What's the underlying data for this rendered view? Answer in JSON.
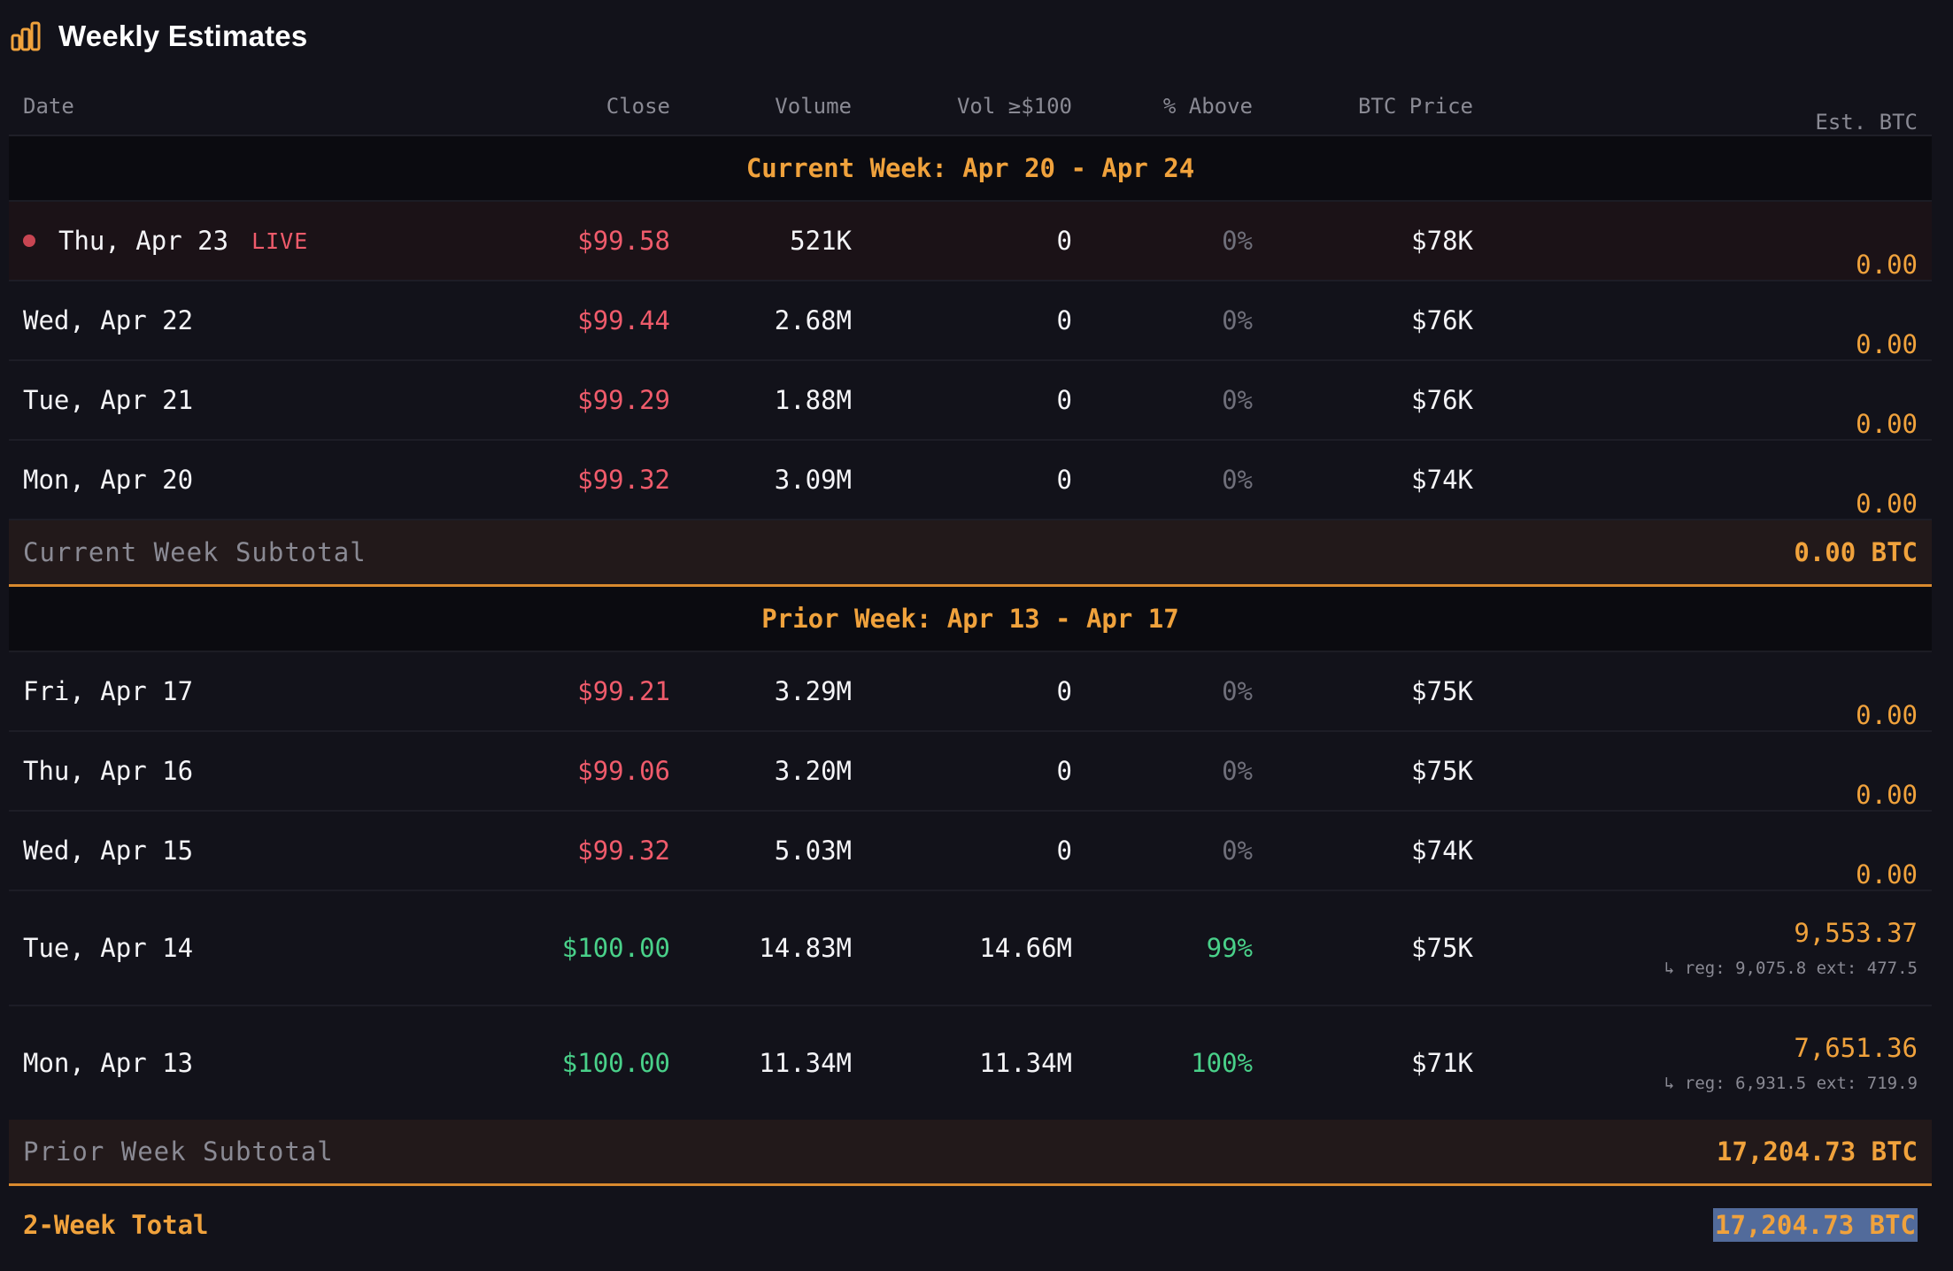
{
  "title": "Weekly Estimates",
  "title_icon": "bar-chart-icon",
  "columns": {
    "date": "Date",
    "close": "Close",
    "volume": "Volume",
    "vol_above": "Vol ≥$100",
    "pct_above": "% Above",
    "btc_price": "BTC Price",
    "est_btc": "Est. BTC"
  },
  "current_week": {
    "header": "Current Week: Apr 20 - Apr 24",
    "rows": [
      {
        "date": "Thu, Apr 23",
        "live": "LIVE",
        "close": "$99.58",
        "volume": "521K",
        "vol_above": "0",
        "pct_above": "0%",
        "btc_price": "$78K",
        "est_btc": "0.00"
      },
      {
        "date": "Wed, Apr 22",
        "close": "$99.44",
        "volume": "2.68M",
        "vol_above": "0",
        "pct_above": "0%",
        "btc_price": "$76K",
        "est_btc": "0.00"
      },
      {
        "date": "Tue, Apr 21",
        "close": "$99.29",
        "volume": "1.88M",
        "vol_above": "0",
        "pct_above": "0%",
        "btc_price": "$76K",
        "est_btc": "0.00"
      },
      {
        "date": "Mon, Apr 20",
        "close": "$99.32",
        "volume": "3.09M",
        "vol_above": "0",
        "pct_above": "0%",
        "btc_price": "$74K",
        "est_btc": "0.00"
      }
    ],
    "subtotal_label": "Current Week Subtotal",
    "subtotal_value": "0.00 BTC"
  },
  "prior_week": {
    "header": "Prior Week: Apr 13 - Apr 17",
    "rows": [
      {
        "date": "Fri, Apr 17",
        "close": "$99.21",
        "volume": "3.29M",
        "vol_above": "0",
        "pct_above": "0%",
        "btc_price": "$75K",
        "est_btc": "0.00"
      },
      {
        "date": "Thu, Apr 16",
        "close": "$99.06",
        "volume": "3.20M",
        "vol_above": "0",
        "pct_above": "0%",
        "btc_price": "$75K",
        "est_btc": "0.00"
      },
      {
        "date": "Wed, Apr 15",
        "close": "$99.32",
        "volume": "5.03M",
        "vol_above": "0",
        "pct_above": "0%",
        "btc_price": "$74K",
        "est_btc": "0.00"
      },
      {
        "date": "Tue, Apr 14",
        "close": "$100.00",
        "volume": "14.83M",
        "vol_above": "14.66M",
        "pct_above": "99%",
        "btc_price": "$75K",
        "est_btc": "9,553.37",
        "breakdown": "↳ reg: 9,075.8 ext: 477.5"
      },
      {
        "date": "Mon, Apr 13",
        "close": "$100.00",
        "volume": "11.34M",
        "vol_above": "11.34M",
        "pct_above": "100%",
        "btc_price": "$71K",
        "est_btc": "7,651.36",
        "breakdown": "↳ reg: 6,931.5 ext: 719.9"
      }
    ],
    "subtotal_label": "Prior Week Subtotal",
    "subtotal_value": "17,204.73 BTC"
  },
  "total": {
    "label": "2-Week Total",
    "value": "17,204.73 BTC"
  },
  "colors": {
    "accent": "#f0a23c",
    "below_target": "#ef5b6b",
    "at_target": "#49d089",
    "background": "#12121a"
  }
}
